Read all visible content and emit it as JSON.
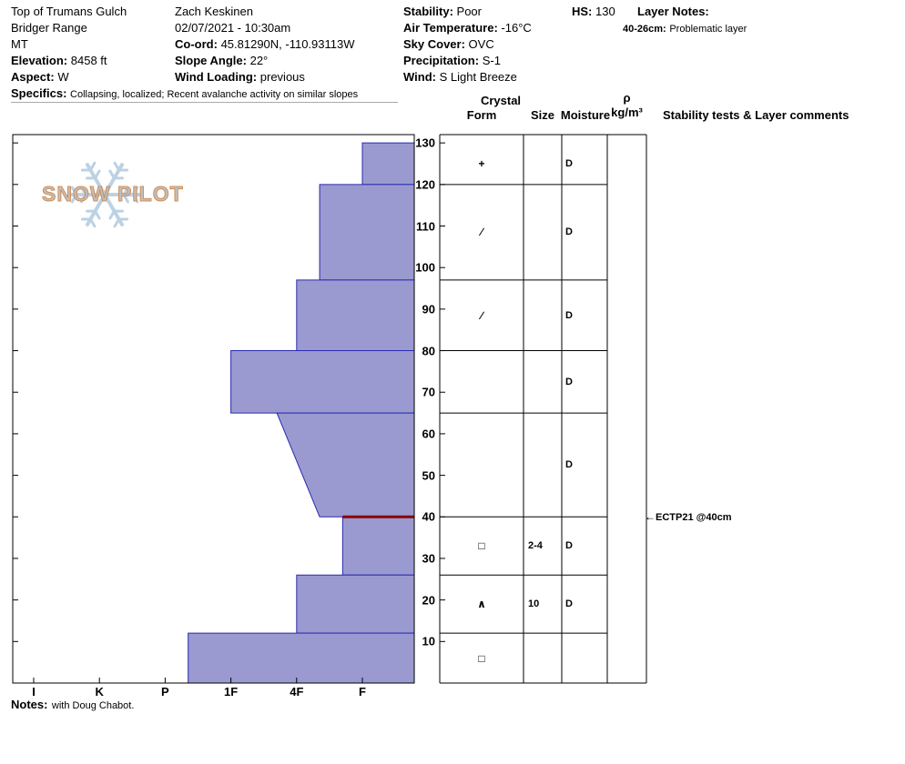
{
  "header": {
    "location": {
      "line1": "Top of Trumans Gulch",
      "line2": "Bridger Range",
      "line3": "MT"
    },
    "elevation": {
      "label": "Elevation:",
      "value": "8458 ft"
    },
    "aspect": {
      "label": "Aspect:",
      "value": "W"
    },
    "specifics": {
      "label": "Specifics:",
      "value": "Collapsing, localized; Recent avalanche activity on similar slopes"
    },
    "observer": "Zach Keskinen",
    "datetime": "02/07/2021 - 10:30am",
    "coord": {
      "label": "Co-ord:",
      "value": "45.81290N, -110.93113W"
    },
    "slope_angle": {
      "label": "Slope Angle:",
      "value": "22°"
    },
    "wind_loading": {
      "label": "Wind Loading:",
      "value": "previous"
    },
    "stability": {
      "label": "Stability:",
      "value": "Poor"
    },
    "air_temperature": {
      "label": "Air Temperature:",
      "value": "-16°C"
    },
    "sky_cover": {
      "label": "Sky Cover:",
      "value": "OVC"
    },
    "precipitation": {
      "label": "Precipitation:",
      "value": "S-1"
    },
    "wind": {
      "label": "Wind:",
      "value": "S Light Breeze"
    },
    "hs": {
      "label": "HS:",
      "value": "130"
    },
    "layer_notes": {
      "label": "Layer Notes:",
      "range": "40-26cm:",
      "text": "Problematic layer"
    }
  },
  "logo": {
    "text": "SNOW PILOT"
  },
  "columns": {
    "crystal": "Crystal",
    "form": "Form",
    "size": "Size",
    "moisture": "Moisture",
    "rho": "ρ",
    "rho_units": "kg/m³",
    "comments": "Stability tests & Layer comments"
  },
  "annotation": {
    "arrow": "←",
    "text": "ECTP21 @40cm",
    "depth_cm": 40
  },
  "notes": {
    "label": "Notes:",
    "value": "with Doug Chabot."
  },
  "chart_data": {
    "type": "area",
    "title": "Snow profile: hand hardness vs depth",
    "hs_cm": 130,
    "depth_unit": "cm",
    "hardness_scale": [
      "I",
      "K",
      "P",
      "1F",
      "4F",
      "F"
    ],
    "depth_ticks": [
      10,
      20,
      30,
      40,
      50,
      60,
      70,
      80,
      90,
      100,
      110,
      120,
      130
    ],
    "layers": [
      {
        "top_cm": 130,
        "bottom_cm": 120,
        "hardness": "F",
        "hardness_top_idx": 5.0,
        "hardness_bottom_idx": 5.0,
        "form": "+",
        "form_name": "precipitation-particles",
        "size_mm": "",
        "moisture": "D"
      },
      {
        "top_cm": 120,
        "bottom_cm": 97,
        "hardness": "4F-F",
        "hardness_top_idx": 4.35,
        "hardness_bottom_idx": 4.35,
        "form": "∕",
        "form_name": "decomposing-fragments",
        "size_mm": "",
        "moisture": "D"
      },
      {
        "top_cm": 97,
        "bottom_cm": 80,
        "hardness": "4F",
        "hardness_top_idx": 4.0,
        "hardness_bottom_idx": 4.0,
        "form": "∕",
        "form_name": "decomposing-fragments",
        "size_mm": "",
        "moisture": "D"
      },
      {
        "top_cm": 80,
        "bottom_cm": 65,
        "hardness": "1F",
        "hardness_top_idx": 3.0,
        "hardness_bottom_idx": 3.0,
        "form": "",
        "form_name": "",
        "size_mm": "",
        "moisture": "D"
      },
      {
        "top_cm": 65,
        "bottom_cm": 40,
        "hardness": "1F-4F to 4F-F",
        "hardness_top_idx": 3.7,
        "hardness_bottom_idx": 4.35,
        "form": "",
        "form_name": "",
        "size_mm": "",
        "moisture": "D"
      },
      {
        "top_cm": 40,
        "bottom_cm": 26,
        "hardness": "4F-F",
        "hardness_top_idx": 4.7,
        "hardness_bottom_idx": 4.7,
        "form": "□",
        "form_name": "faceted-crystals",
        "size_mm": "2-4",
        "moisture": "D"
      },
      {
        "top_cm": 26,
        "bottom_cm": 12,
        "hardness": "4F",
        "hardness_top_idx": 4.0,
        "hardness_bottom_idx": 4.0,
        "form": "∧",
        "form_name": "surface-hoar",
        "size_mm": "10",
        "moisture": "D"
      },
      {
        "top_cm": 12,
        "bottom_cm": 0,
        "hardness": "P-1F",
        "hardness_top_idx": 2.35,
        "hardness_bottom_idx": 2.35,
        "form": "□",
        "form_name": "faceted-crystals",
        "size_mm": "",
        "moisture": ""
      }
    ],
    "problem_layer_depth_cm": 40,
    "colors": {
      "layer_fill": "#9a9ad1",
      "layer_stroke": "#2a2ab0",
      "problem_layer": "#8b0000"
    }
  }
}
